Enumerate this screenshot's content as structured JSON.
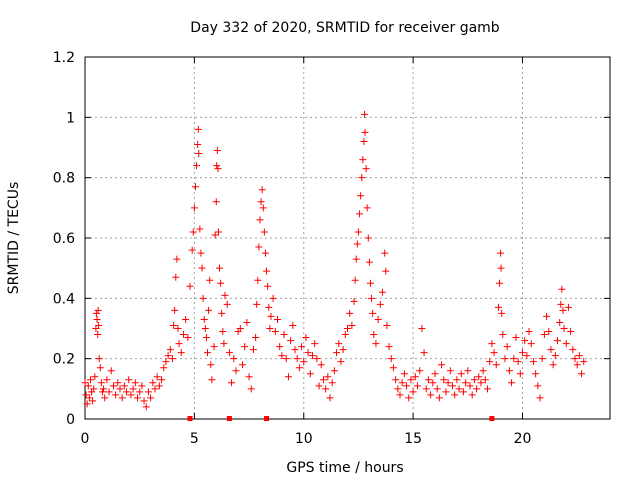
{
  "chart_data": {
    "type": "scatter",
    "title": "Day 332 of 2020, SRMTID for receiver gamb",
    "xlabel": "GPS time / hours",
    "ylabel": "SRMTID / TECUs",
    "xlim": [
      0,
      24
    ],
    "ylim": [
      0,
      1.2
    ],
    "x_ticks": [
      0,
      5,
      10,
      15,
      20
    ],
    "y_ticks": [
      0,
      0.2,
      0.4,
      0.6,
      0.8,
      1,
      1.2
    ],
    "x_tick_labels": [
      "0",
      "5",
      "10",
      "15",
      "20"
    ],
    "y_tick_labels": [
      "0",
      "0.2",
      "0.4",
      "0.6",
      "0.8",
      "1",
      "1.2"
    ],
    "grid": true,
    "marker": "+",
    "color": "#ff0000",
    "series": [
      {
        "name": "SRMTID",
        "points": [
          [
            0.0,
            0.12
          ],
          [
            0.05,
            0.08
          ],
          [
            0.1,
            0.05
          ],
          [
            0.15,
            0.11
          ],
          [
            0.2,
            0.07
          ],
          [
            0.25,
            0.13
          ],
          [
            0.3,
            0.09
          ],
          [
            0.35,
            0.06
          ],
          [
            0.4,
            0.1
          ],
          [
            0.45,
            0.14
          ],
          [
            0.5,
            0.3
          ],
          [
            0.52,
            0.35
          ],
          [
            0.55,
            0.33
          ],
          [
            0.58,
            0.28
          ],
          [
            0.6,
            0.36
          ],
          [
            0.62,
            0.31
          ],
          [
            0.65,
            0.2
          ],
          [
            0.7,
            0.17
          ],
          [
            0.75,
            0.12
          ],
          [
            0.8,
            0.09
          ],
          [
            0.85,
            0.1
          ],
          [
            0.9,
            0.07
          ],
          [
            1.0,
            0.13
          ],
          [
            1.1,
            0.09
          ],
          [
            1.2,
            0.16
          ],
          [
            1.3,
            0.11
          ],
          [
            1.4,
            0.08
          ],
          [
            1.5,
            0.12
          ],
          [
            1.6,
            0.1
          ],
          [
            1.7,
            0.07
          ],
          [
            1.8,
            0.11
          ],
          [
            1.9,
            0.09
          ],
          [
            2.0,
            0.13
          ],
          [
            2.1,
            0.08
          ],
          [
            2.2,
            0.1
          ],
          [
            2.3,
            0.12
          ],
          [
            2.4,
            0.07
          ],
          [
            2.5,
            0.09
          ],
          [
            2.6,
            0.11
          ],
          [
            2.7,
            0.06
          ],
          [
            2.8,
            0.04
          ],
          [
            2.9,
            0.09
          ],
          [
            3.0,
            0.07
          ],
          [
            3.1,
            0.12
          ],
          [
            3.2,
            0.1
          ],
          [
            3.3,
            0.14
          ],
          [
            3.4,
            0.11
          ],
          [
            3.5,
            0.13
          ],
          [
            3.6,
            0.17
          ],
          [
            3.7,
            0.19
          ],
          [
            3.8,
            0.21
          ],
          [
            3.9,
            0.23
          ],
          [
            4.0,
            0.2
          ],
          [
            4.05,
            0.31
          ],
          [
            4.1,
            0.36
          ],
          [
            4.15,
            0.47
          ],
          [
            4.2,
            0.53
          ],
          [
            4.25,
            0.3
          ],
          [
            4.3,
            0.25
          ],
          [
            4.4,
            0.22
          ],
          [
            4.5,
            0.28
          ],
          [
            4.6,
            0.33
          ],
          [
            4.7,
            0.27
          ],
          [
            4.8,
            0.44
          ],
          [
            4.9,
            0.56
          ],
          [
            4.95,
            0.62
          ],
          [
            5.0,
            0.7
          ],
          [
            5.05,
            0.77
          ],
          [
            5.1,
            0.84
          ],
          [
            5.15,
            0.91
          ],
          [
            5.18,
            0.96
          ],
          [
            5.2,
            0.88
          ],
          [
            5.25,
            0.63
          ],
          [
            5.3,
            0.55
          ],
          [
            5.35,
            0.5
          ],
          [
            5.4,
            0.4
          ],
          [
            5.45,
            0.33
          ],
          [
            5.5,
            0.3
          ],
          [
            5.55,
            0.27
          ],
          [
            5.6,
            0.22
          ],
          [
            5.65,
            0.36
          ],
          [
            5.7,
            0.46
          ],
          [
            5.75,
            0.18
          ],
          [
            5.8,
            0.13
          ],
          [
            5.9,
            0.24
          ],
          [
            5.95,
            0.61
          ],
          [
            6.0,
            0.72
          ],
          [
            6.02,
            0.84
          ],
          [
            6.05,
            0.89
          ],
          [
            6.08,
            0.83
          ],
          [
            6.1,
            0.62
          ],
          [
            6.15,
            0.5
          ],
          [
            6.2,
            0.45
          ],
          [
            6.25,
            0.35
          ],
          [
            6.3,
            0.29
          ],
          [
            6.35,
            0.25
          ],
          [
            6.4,
            0.41
          ],
          [
            6.5,
            0.38
          ],
          [
            6.6,
            0.22
          ],
          [
            6.7,
            0.12
          ],
          [
            6.8,
            0.2
          ],
          [
            6.9,
            0.16
          ],
          [
            7.0,
            0.29
          ],
          [
            7.1,
            0.3
          ],
          [
            7.2,
            0.18
          ],
          [
            7.3,
            0.24
          ],
          [
            7.4,
            0.32
          ],
          [
            7.5,
            0.14
          ],
          [
            7.6,
            0.1
          ],
          [
            7.7,
            0.23
          ],
          [
            7.8,
            0.27
          ],
          [
            7.85,
            0.38
          ],
          [
            7.9,
            0.46
          ],
          [
            7.95,
            0.57
          ],
          [
            8.0,
            0.66
          ],
          [
            8.05,
            0.72
          ],
          [
            8.1,
            0.76
          ],
          [
            8.15,
            0.7
          ],
          [
            8.2,
            0.62
          ],
          [
            8.25,
            0.55
          ],
          [
            8.3,
            0.49
          ],
          [
            8.35,
            0.44
          ],
          [
            8.4,
            0.37
          ],
          [
            8.45,
            0.3
          ],
          [
            8.5,
            0.34
          ],
          [
            8.6,
            0.4
          ],
          [
            8.7,
            0.29
          ],
          [
            8.8,
            0.33
          ],
          [
            8.9,
            0.24
          ],
          [
            9.0,
            0.21
          ],
          [
            9.1,
            0.28
          ],
          [
            9.2,
            0.2
          ],
          [
            9.3,
            0.14
          ],
          [
            9.4,
            0.26
          ],
          [
            9.5,
            0.31
          ],
          [
            9.6,
            0.23
          ],
          [
            9.7,
            0.2
          ],
          [
            9.8,
            0.17
          ],
          [
            9.9,
            0.24
          ],
          [
            10.0,
            0.19
          ],
          [
            10.1,
            0.27
          ],
          [
            10.2,
            0.22
          ],
          [
            10.3,
            0.15
          ],
          [
            10.4,
            0.21
          ],
          [
            10.5,
            0.25
          ],
          [
            10.6,
            0.2
          ],
          [
            10.7,
            0.11
          ],
          [
            10.8,
            0.18
          ],
          [
            10.9,
            0.13
          ],
          [
            11.0,
            0.1
          ],
          [
            11.1,
            0.14
          ],
          [
            11.2,
            0.07
          ],
          [
            11.3,
            0.12
          ],
          [
            11.4,
            0.16
          ],
          [
            11.5,
            0.22
          ],
          [
            11.6,
            0.25
          ],
          [
            11.7,
            0.19
          ],
          [
            11.8,
            0.23
          ],
          [
            11.9,
            0.28
          ],
          [
            12.0,
            0.3
          ],
          [
            12.1,
            0.35
          ],
          [
            12.2,
            0.31
          ],
          [
            12.3,
            0.39
          ],
          [
            12.35,
            0.46
          ],
          [
            12.4,
            0.53
          ],
          [
            12.45,
            0.58
          ],
          [
            12.5,
            0.62
          ],
          [
            12.55,
            0.68
          ],
          [
            12.6,
            0.74
          ],
          [
            12.65,
            0.8
          ],
          [
            12.7,
            0.86
          ],
          [
            12.75,
            0.92
          ],
          [
            12.78,
            1.01
          ],
          [
            12.8,
            0.95
          ],
          [
            12.85,
            0.83
          ],
          [
            12.9,
            0.7
          ],
          [
            12.95,
            0.6
          ],
          [
            13.0,
            0.52
          ],
          [
            13.05,
            0.45
          ],
          [
            13.1,
            0.4
          ],
          [
            13.15,
            0.35
          ],
          [
            13.2,
            0.28
          ],
          [
            13.3,
            0.25
          ],
          [
            13.4,
            0.33
          ],
          [
            13.5,
            0.38
          ],
          [
            13.6,
            0.42
          ],
          [
            13.7,
            0.55
          ],
          [
            13.75,
            0.49
          ],
          [
            13.8,
            0.31
          ],
          [
            13.9,
            0.24
          ],
          [
            14.0,
            0.2
          ],
          [
            14.1,
            0.17
          ],
          [
            14.2,
            0.13
          ],
          [
            14.3,
            0.1
          ],
          [
            14.4,
            0.08
          ],
          [
            14.5,
            0.12
          ],
          [
            14.6,
            0.15
          ],
          [
            14.7,
            0.11
          ],
          [
            14.8,
            0.07
          ],
          [
            14.9,
            0.13
          ],
          [
            15.0,
            0.09
          ],
          [
            15.1,
            0.14
          ],
          [
            15.2,
            0.11
          ],
          [
            15.3,
            0.16
          ],
          [
            15.4,
            0.3
          ],
          [
            15.5,
            0.22
          ],
          [
            15.6,
            0.1
          ],
          [
            15.7,
            0.13
          ],
          [
            15.8,
            0.08
          ],
          [
            15.9,
            0.12
          ],
          [
            16.0,
            0.15
          ],
          [
            16.1,
            0.1
          ],
          [
            16.2,
            0.07
          ],
          [
            16.3,
            0.18
          ],
          [
            16.4,
            0.13
          ],
          [
            16.5,
            0.09
          ],
          [
            16.6,
            0.12
          ],
          [
            16.7,
            0.16
          ],
          [
            16.8,
            0.11
          ],
          [
            16.9,
            0.08
          ],
          [
            17.0,
            0.13
          ],
          [
            17.1,
            0.1
          ],
          [
            17.2,
            0.15
          ],
          [
            17.3,
            0.09
          ],
          [
            17.4,
            0.12
          ],
          [
            17.5,
            0.16
          ],
          [
            17.6,
            0.11
          ],
          [
            17.7,
            0.08
          ],
          [
            17.8,
            0.13
          ],
          [
            17.9,
            0.1
          ],
          [
            18.0,
            0.14
          ],
          [
            18.1,
            0.12
          ],
          [
            18.2,
            0.16
          ],
          [
            18.3,
            0.13
          ],
          [
            18.4,
            0.1
          ],
          [
            18.5,
            0.19
          ],
          [
            18.6,
            0.25
          ],
          [
            18.7,
            0.22
          ],
          [
            18.8,
            0.18
          ],
          [
            18.9,
            0.37
          ],
          [
            18.95,
            0.45
          ],
          [
            19.0,
            0.55
          ],
          [
            19.02,
            0.5
          ],
          [
            19.05,
            0.35
          ],
          [
            19.1,
            0.28
          ],
          [
            19.2,
            0.2
          ],
          [
            19.3,
            0.24
          ],
          [
            19.4,
            0.16
          ],
          [
            19.5,
            0.12
          ],
          [
            19.6,
            0.2
          ],
          [
            19.7,
            0.27
          ],
          [
            19.8,
            0.19
          ],
          [
            19.9,
            0.15
          ],
          [
            20.0,
            0.22
          ],
          [
            20.1,
            0.26
          ],
          [
            20.2,
            0.21
          ],
          [
            20.3,
            0.29
          ],
          [
            20.4,
            0.25
          ],
          [
            20.5,
            0.19
          ],
          [
            20.6,
            0.15
          ],
          [
            20.7,
            0.11
          ],
          [
            20.8,
            0.07
          ],
          [
            20.9,
            0.2
          ],
          [
            21.0,
            0.28
          ],
          [
            21.1,
            0.34
          ],
          [
            21.2,
            0.29
          ],
          [
            21.3,
            0.23
          ],
          [
            21.4,
            0.18
          ],
          [
            21.5,
            0.21
          ],
          [
            21.6,
            0.26
          ],
          [
            21.7,
            0.32
          ],
          [
            21.75,
            0.38
          ],
          [
            21.8,
            0.43
          ],
          [
            21.85,
            0.36
          ],
          [
            21.9,
            0.3
          ],
          [
            22.0,
            0.25
          ],
          [
            22.1,
            0.37
          ],
          [
            22.2,
            0.29
          ],
          [
            22.3,
            0.23
          ],
          [
            22.4,
            0.2
          ],
          [
            22.5,
            0.18
          ],
          [
            22.6,
            0.21
          ],
          [
            22.7,
            0.15
          ],
          [
            22.8,
            0.19
          ]
        ]
      }
    ],
    "baseline_markers": [
      4.8,
      6.6,
      8.3,
      18.6
    ]
  }
}
